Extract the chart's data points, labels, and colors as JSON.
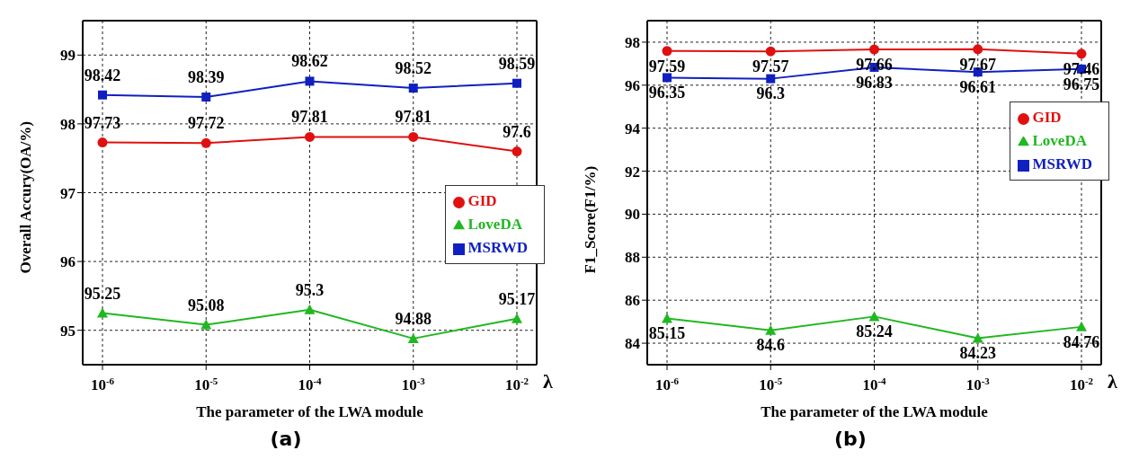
{
  "chart_data": [
    {
      "type": "line",
      "ylabel": "Overall Accury(OA/%)",
      "xlabel": "The parameter of the LWA module",
      "categories": [
        "10$^{-6}$",
        "10$^{-5}$",
        "10$^{-4}$",
        "10$^{-3}$",
        "10$^{-2}$"
      ],
      "ylim": [
        94.5,
        99.5
      ],
      "yticks": [
        95,
        96,
        97,
        98,
        99
      ],
      "grid": true,
      "legend": "right",
      "data_labels": true,
      "annotations": [
        "λ",
        "(a)"
      ],
      "series": [
        {
          "name": "MSRWD",
          "color": "#1020c0",
          "marker": "square",
          "values": [
            98.42,
            98.39,
            98.62,
            98.52,
            98.59
          ]
        },
        {
          "name": "GID",
          "color": "#e01010",
          "marker": "circle",
          "values": [
            97.73,
            97.72,
            97.81,
            97.81,
            97.6
          ]
        },
        {
          "name": "LoveDA",
          "color": "#20b820",
          "marker": "triangle",
          "values": [
            95.25,
            95.08,
            95.3,
            94.88,
            95.17
          ]
        }
      ]
    },
    {
      "type": "line",
      "ylabel": "F1_Score(F1/%)",
      "xlabel": "The parameter of the LWA module",
      "categories": [
        "10$^{-6}$",
        "10$^{-5}$",
        "10$^{-4}$",
        "10$^{-3}$",
        "10$^{-2}$"
      ],
      "ylim": [
        83,
        99
      ],
      "yticks": [
        84,
        86,
        88,
        90,
        92,
        94,
        96,
        98
      ],
      "grid": true,
      "legend": "top right",
      "data_labels": true,
      "annotations": [
        "λ",
        "(b)"
      ],
      "series": [
        {
          "name": "MSRWD",
          "color": "#1020c0",
          "marker": "square",
          "values": [
            96.35,
            96.3,
            96.83,
            96.61,
            96.75
          ]
        },
        {
          "name": "GID",
          "color": "#e01010",
          "marker": "circle",
          "values": [
            97.59,
            97.57,
            97.66,
            97.67,
            97.46
          ]
        },
        {
          "name": "LoveDA",
          "color": "#20b820",
          "marker": "triangle",
          "values": [
            85.15,
            84.6,
            85.24,
            84.23,
            84.76
          ]
        }
      ]
    }
  ]
}
